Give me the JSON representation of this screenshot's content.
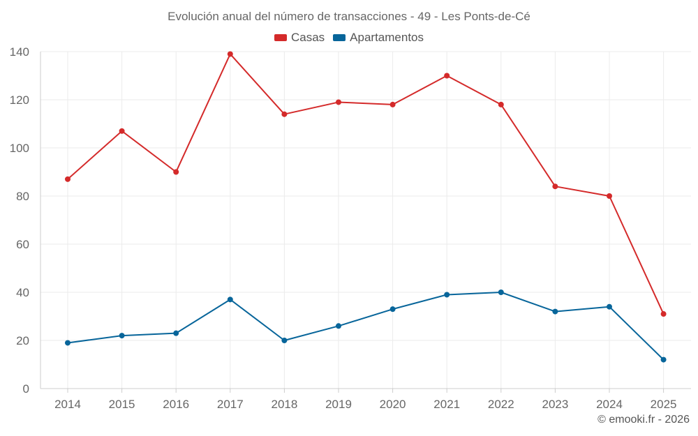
{
  "chart_data": {
    "type": "line",
    "title": "Evolución anual del número de transacciones - 49 - Les Ponts-de-Cé",
    "categories": [
      "2014",
      "2015",
      "2016",
      "2017",
      "2018",
      "2019",
      "2020",
      "2021",
      "2022",
      "2023",
      "2024",
      "2025"
    ],
    "series": [
      {
        "name": "Casas",
        "color": "#d42a2a",
        "values": [
          87,
          107,
          90,
          139,
          114,
          119,
          118,
          130,
          118,
          84,
          80,
          31
        ]
      },
      {
        "name": "Apartamentos",
        "color": "#07659a",
        "values": [
          19,
          22,
          23,
          37,
          20,
          26,
          33,
          39,
          40,
          32,
          34,
          12
        ]
      }
    ],
    "ylim": [
      0,
      140
    ],
    "yticks": [
      0,
      20,
      40,
      60,
      80,
      100,
      120,
      140
    ],
    "xlabel": "",
    "ylabel": "",
    "grid": true,
    "legend": "top-center"
  },
  "legend": {
    "casas_label": "Casas",
    "apartamentos_label": "Apartamentos"
  },
  "credit": "© emooki.fr - 2026"
}
